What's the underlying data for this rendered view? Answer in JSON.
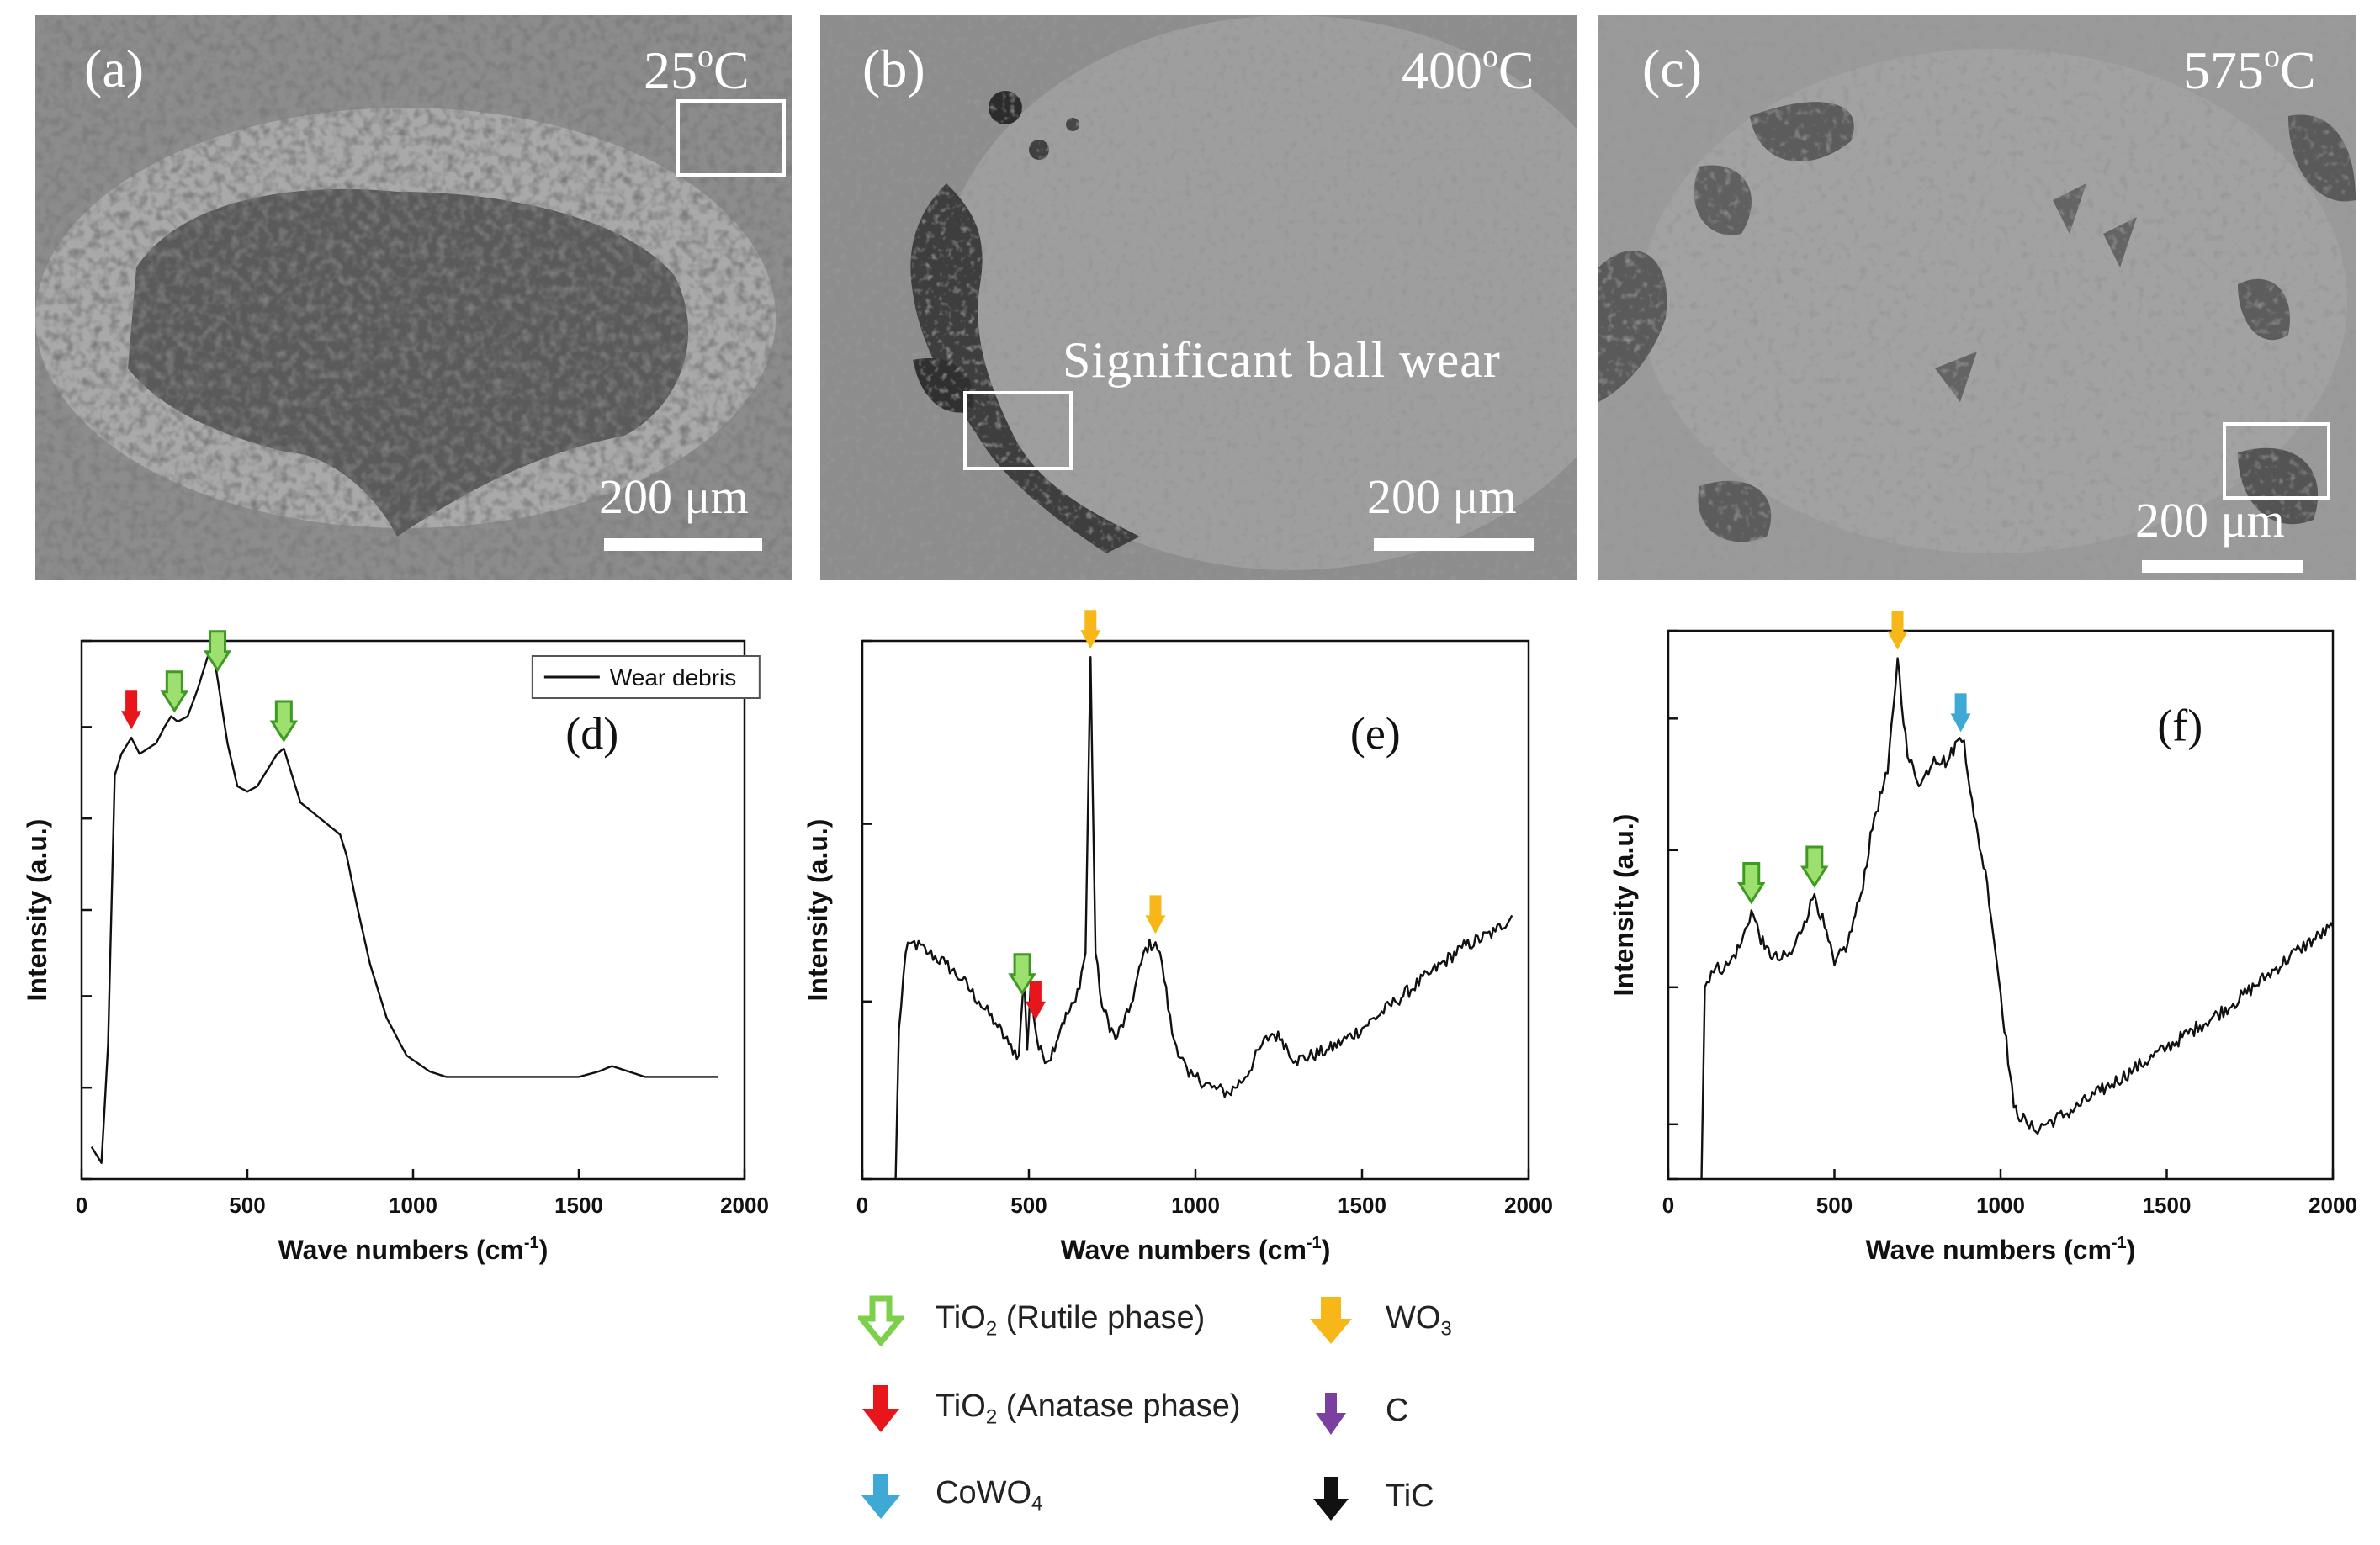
{
  "figure": {
    "micrographs": [
      {
        "label": "(a)",
        "temperature": "25",
        "degree": "o",
        "unit": "C",
        "scale_text": "200 μm",
        "annotation": ""
      },
      {
        "label": "(b)",
        "temperature": "400",
        "degree": "o",
        "unit": "C",
        "scale_text": "200 μm",
        "annotation": "Significant ball wear"
      },
      {
        "label": "(c)",
        "temperature": "575",
        "degree": "o",
        "unit": "C",
        "scale_text": "200 μm",
        "annotation": ""
      }
    ],
    "legend_key": [
      {
        "name": "TiO",
        "sub": "2",
        "suffix": " (Rutile phase)",
        "color": "#7cd04a",
        "style": "hollow"
      },
      {
        "name": "WO",
        "sub": "3",
        "suffix": "",
        "color": "#f7b719",
        "style": "solid"
      },
      {
        "name": "TiO",
        "sub": "2",
        "suffix": " (Anatase phase)",
        "color": "#e8151b",
        "style": "solid"
      },
      {
        "name": "C",
        "sub": "",
        "suffix": "",
        "color": "#7b3fa0",
        "style": "solid"
      },
      {
        "name": "CoWO",
        "sub": "4",
        "suffix": "",
        "color": "#3fa9d6",
        "style": "solid"
      },
      {
        "name": "TiC",
        "sub": "",
        "suffix": "",
        "color": "#111111",
        "style": "solid"
      }
    ]
  },
  "chart_data": [
    {
      "panel": "(d)",
      "type": "line",
      "xlabel": "Wave numbers (cm",
      "xlabel_sup": "-1",
      "xlabel_close": ")",
      "ylabel": "Intensity (a.u.)",
      "xlim": [
        0,
        2000
      ],
      "ylim": [
        0,
        100
      ],
      "xticks": [
        0,
        500,
        1000,
        1500,
        2000
      ],
      "yticks": [
        0,
        17,
        34,
        50,
        67,
        84,
        100
      ],
      "legend": "Wear debris",
      "series": [
        {
          "name": "Wear debris",
          "x": [
            30,
            60,
            80,
            100,
            120,
            150,
            175,
            200,
            225,
            250,
            270,
            290,
            320,
            350,
            380,
            400,
            420,
            440,
            470,
            500,
            530,
            560,
            590,
            610,
            630,
            660,
            700,
            740,
            780,
            800,
            830,
            870,
            920,
            980,
            1050,
            1100,
            1200,
            1300,
            1400,
            1500,
            1560,
            1600,
            1650,
            1700,
            1800,
            1920
          ],
          "y": [
            6,
            3,
            25,
            75,
            79,
            82,
            79,
            80,
            81,
            84,
            86,
            85,
            86,
            91,
            97,
            97,
            89,
            81,
            73,
            72,
            73,
            76,
            79,
            80,
            76,
            70,
            68,
            66,
            64,
            60,
            51,
            40,
            30,
            23,
            20,
            19,
            19,
            19,
            19,
            19,
            20,
            21,
            20,
            19,
            19,
            19
          ]
        }
      ],
      "peaks": [
        {
          "phase": "TiO2 (Anatase phase)",
          "x": 150,
          "color": "#e8151b",
          "style": "solid"
        },
        {
          "phase": "TiO2 (Rutile phase)",
          "x": 280,
          "color": "#7cd04a",
          "style": "hollow"
        },
        {
          "phase": "TiO2 (Rutile phase)",
          "x": 410,
          "color": "#7cd04a",
          "style": "hollow"
        },
        {
          "phase": "TiO2 (Rutile phase)",
          "x": 610,
          "color": "#7cd04a",
          "style": "hollow"
        }
      ]
    },
    {
      "panel": "(e)",
      "type": "line",
      "xlabel": "Wave numbers (cm",
      "xlabel_sup": "-1",
      "xlabel_close": ")",
      "ylabel": "Intensity (a.u.)",
      "xlim": [
        0,
        2000
      ],
      "ylim": [
        0,
        100
      ],
      "xticks": [
        0,
        500,
        1000,
        1500,
        2000
      ],
      "yticks": [
        0,
        33,
        66,
        100
      ],
      "legend": "",
      "series": [
        {
          "name": "400 C",
          "x": [
            100,
            110,
            130,
            150,
            200,
            250,
            300,
            350,
            400,
            440,
            470,
            485,
            495,
            505,
            515,
            530,
            560,
            600,
            640,
            670,
            685,
            700,
            720,
            760,
            800,
            850,
            880,
            900,
            930,
            980,
            1000,
            1050,
            1100,
            1150,
            1200,
            1230,
            1260,
            1300,
            1400,
            1500,
            1600,
            1700,
            1800,
            1900,
            1950
          ],
          "y": [
            0,
            28,
            42,
            44,
            42,
            40,
            37,
            33,
            29,
            25,
            23,
            38,
            24,
            36,
            30,
            24,
            22,
            29,
            33,
            42,
            97,
            42,
            32,
            26,
            31,
            43,
            44,
            40,
            27,
            19,
            19,
            17,
            16,
            19,
            25,
            27,
            26,
            22,
            24,
            28,
            33,
            38,
            43,
            46,
            49
          ]
        }
      ],
      "peaks": [
        {
          "phase": "TiO2 (Rutile phase)",
          "x": 480,
          "color": "#7cd04a",
          "style": "hollow"
        },
        {
          "phase": "TiO2 (Anatase phase)",
          "x": 520,
          "color": "#e8151b",
          "style": "solid"
        },
        {
          "phase": "WO3",
          "x": 685,
          "color": "#f7b719",
          "style": "solid"
        },
        {
          "phase": "WO3",
          "x": 880,
          "color": "#f7b719",
          "style": "solid"
        }
      ]
    },
    {
      "panel": "(f)",
      "type": "line",
      "xlabel": "Wave numbers (cm",
      "xlabel_sup": "-1",
      "xlabel_close": ")",
      "ylabel": "Intensity (a.u.)",
      "xlim": [
        0,
        2000
      ],
      "ylim": [
        0,
        100
      ],
      "xticks": [
        0,
        500,
        1000,
        1500,
        2000
      ],
      "yticks": [
        0,
        10,
        35,
        60,
        84,
        100
      ],
      "legend": "",
      "series": [
        {
          "name": "575 C",
          "x": [
            100,
            110,
            130,
            180,
            220,
            250,
            290,
            330,
            370,
            410,
            440,
            470,
            500,
            540,
            580,
            620,
            660,
            690,
            720,
            760,
            800,
            840,
            870,
            890,
            920,
            960,
            1000,
            1040,
            1080,
            1100,
            1200,
            1300,
            1400,
            1500,
            1600,
            1700,
            1800,
            1900,
            2000
          ],
          "y": [
            0,
            35,
            38,
            39,
            43,
            49,
            42,
            40,
            41,
            47,
            52,
            46,
            39,
            43,
            52,
            66,
            74,
            95,
            77,
            72,
            77,
            76,
            80,
            80,
            66,
            54,
            34,
            13,
            10,
            9,
            12,
            16,
            20,
            24,
            28,
            32,
            37,
            42,
            46
          ]
        }
      ],
      "peaks": [
        {
          "phase": "TiO2 (Rutile phase)",
          "x": 250,
          "color": "#7cd04a",
          "style": "hollow"
        },
        {
          "phase": "TiO2 (Rutile phase)",
          "x": 440,
          "color": "#7cd04a",
          "style": "hollow"
        },
        {
          "phase": "WO3",
          "x": 690,
          "color": "#f7b719",
          "style": "solid"
        },
        {
          "phase": "CoWO4",
          "x": 880,
          "color": "#3fa9d6",
          "style": "solid"
        }
      ]
    }
  ]
}
